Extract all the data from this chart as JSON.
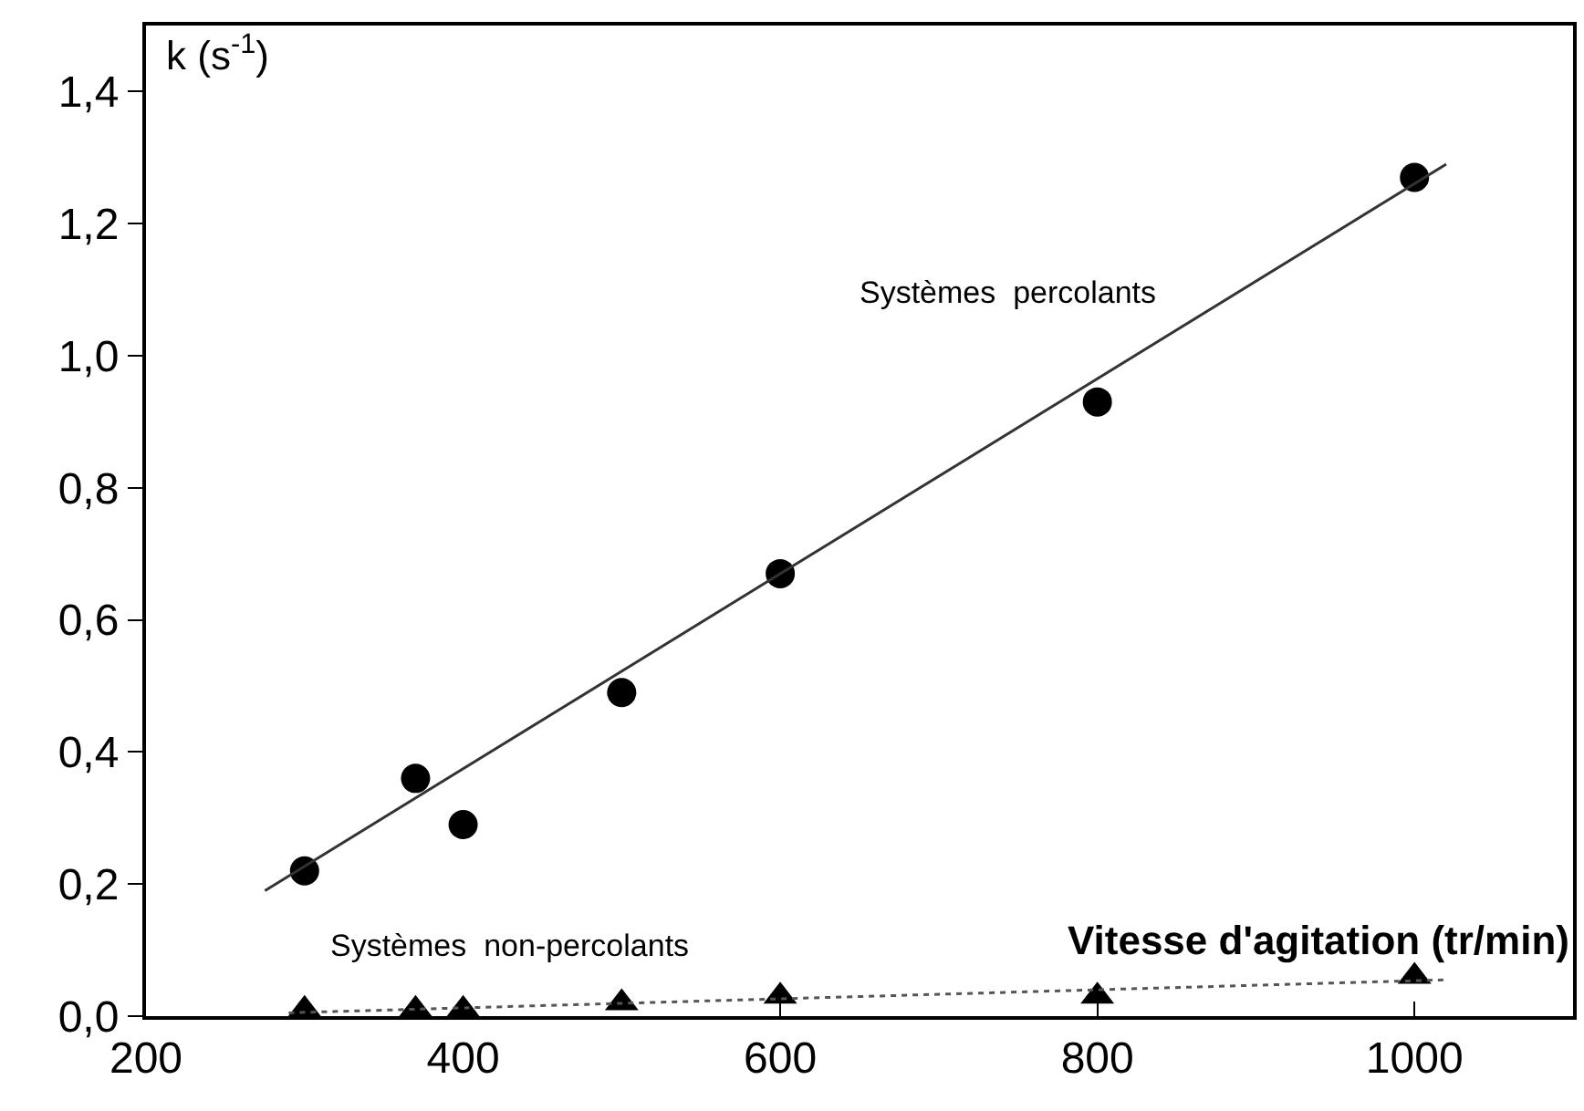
{
  "chart_data": {
    "type": "scatter",
    "xlabel": "Vitesse d'agitation (tr/min)",
    "ylabel": "k (s$^{-1}$)",
    "xlim": [
      200,
      1100
    ],
    "xticks": [
      200,
      400,
      600,
      800,
      1000
    ],
    "ylim": [
      0,
      1.5
    ],
    "yticks": [
      {
        "value": 0,
        "label": "0,0"
      },
      {
        "value": 0.2,
        "label": "0,2"
      },
      {
        "value": 0.4,
        "label": "0,4"
      },
      {
        "value": 0.6,
        "label": "0,6"
      },
      {
        "value": 0.8,
        "label": "0,8"
      },
      {
        "value": 1.0,
        "label": "1,0"
      },
      {
        "value": 1.2,
        "label": "1,2"
      },
      {
        "value": 1.4,
        "label": "1,4"
      }
    ],
    "legend": false,
    "series": [
      {
        "marker": "circle",
        "color": "#000000",
        "x": [
          300,
          370,
          400,
          500,
          600,
          800,
          1000
        ],
        "values": [
          0.22,
          0.36,
          0.29,
          0.49,
          0.67,
          0.93,
          1.27
        ]
      },
      {
        "marker": "triangle",
        "color": "#000000",
        "x": [
          300,
          370,
          400,
          500,
          600,
          800,
          1000
        ],
        "values": [
          0.01,
          0.01,
          0.01,
          0.02,
          0.03,
          0.03,
          0.06
        ]
      },
      {
        "type": "line",
        "name": "Systèmes  percolants",
        "line_style": "solid",
        "color": "#333333",
        "x": [
          275,
          1020
        ],
        "values": [
          0.19,
          1.29
        ]
      },
      {
        "type": "line",
        "name": "Systèmes  non-percolants",
        "line_style": "dotted",
        "color": "#555555",
        "x": [
          290,
          1020
        ],
        "values": [
          0.005,
          0.055
        ]
      }
    ]
  }
}
